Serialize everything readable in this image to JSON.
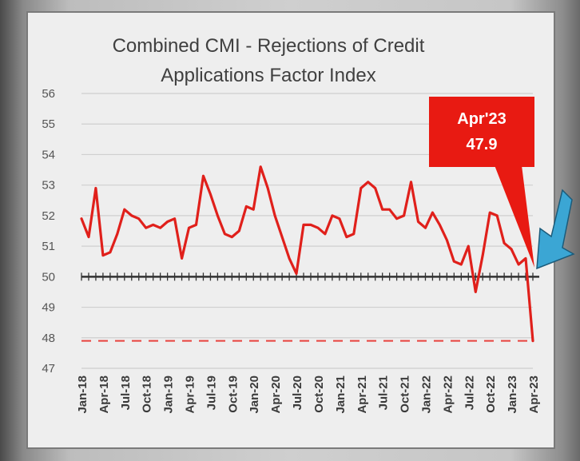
{
  "chart_data": {
    "type": "line",
    "title_lines": [
      "Combined CMI - Rejections of Credit",
      "Applications Factor Index"
    ],
    "xlabel": "",
    "ylabel": "",
    "ylim": [
      47,
      56
    ],
    "y_ticks": [
      56,
      55,
      54,
      53,
      52,
      51,
      50,
      49,
      48,
      47
    ],
    "grid": true,
    "x_tick_labels": [
      "Jan-18",
      "Apr-18",
      "Jul-18",
      "Oct-18",
      "Jan-19",
      "Apr-19",
      "Jul-19",
      "Oct-19",
      "Jan-20",
      "Apr-20",
      "Jul-20",
      "Oct-20",
      "Jan-21",
      "Apr-21",
      "Jul-21",
      "Oct-21",
      "Jan-22",
      "Apr-22",
      "Jul-22",
      "Oct-22",
      "Jan-23",
      "Apr-23"
    ],
    "series": [
      {
        "color": "#e0201b",
        "x": [
          "Jan-18",
          "Feb-18",
          "Mar-18",
          "Apr-18",
          "May-18",
          "Jun-18",
          "Jul-18",
          "Aug-18",
          "Sep-18",
          "Oct-18",
          "Nov-18",
          "Dec-18",
          "Jan-19",
          "Feb-19",
          "Mar-19",
          "Apr-19",
          "May-19",
          "Jun-19",
          "Jul-19",
          "Aug-19",
          "Sep-19",
          "Oct-19",
          "Nov-19",
          "Dec-19",
          "Jan-20",
          "Feb-20",
          "Mar-20",
          "Apr-20",
          "May-20",
          "Jun-20",
          "Jul-20",
          "Aug-20",
          "Sep-20",
          "Oct-20",
          "Nov-20",
          "Dec-20",
          "Jan-21",
          "Feb-21",
          "Mar-21",
          "Apr-21",
          "May-21",
          "Jun-21",
          "Jul-21",
          "Aug-21",
          "Sep-21",
          "Oct-21",
          "Nov-21",
          "Dec-21",
          "Jan-22",
          "Feb-22",
          "Mar-22",
          "Apr-22",
          "May-22",
          "Jun-22",
          "Jul-22",
          "Aug-22",
          "Sep-22",
          "Oct-22",
          "Nov-22",
          "Dec-22",
          "Jan-23",
          "Feb-23",
          "Mar-23",
          "Apr-23"
        ],
        "values": [
          51.9,
          51.3,
          52.9,
          50.7,
          50.8,
          51.4,
          52.2,
          52.0,
          51.9,
          51.6,
          51.7,
          51.6,
          51.8,
          51.9,
          50.6,
          51.6,
          51.7,
          53.3,
          52.7,
          52.0,
          51.4,
          51.3,
          51.5,
          52.3,
          52.2,
          53.6,
          52.9,
          52.0,
          51.3,
          50.6,
          50.1,
          51.7,
          51.7,
          51.6,
          51.4,
          52.0,
          51.9,
          51.3,
          51.4,
          52.9,
          53.1,
          52.9,
          52.2,
          52.2,
          51.9,
          52.0,
          53.1,
          51.8,
          51.6,
          52.1,
          51.7,
          51.2,
          50.5,
          50.4,
          51.0,
          49.5,
          50.7,
          52.1,
          52.0,
          51.1,
          50.9,
          50.4,
          50.6,
          47.9
        ]
      }
    ],
    "reference_lines": [
      {
        "value": 50,
        "color": "#333333",
        "style": "solid-ticked"
      },
      {
        "value": 47.9,
        "color": "#e8423d",
        "style": "dashed"
      }
    ],
    "annotations": [
      {
        "label": "Apr'23",
        "value_text": "47.9",
        "x": "Apr-23",
        "y": 47.9,
        "bg_color": "#e81a12"
      }
    ],
    "pointer_arrow": {
      "color": "#3ba6d4"
    }
  }
}
